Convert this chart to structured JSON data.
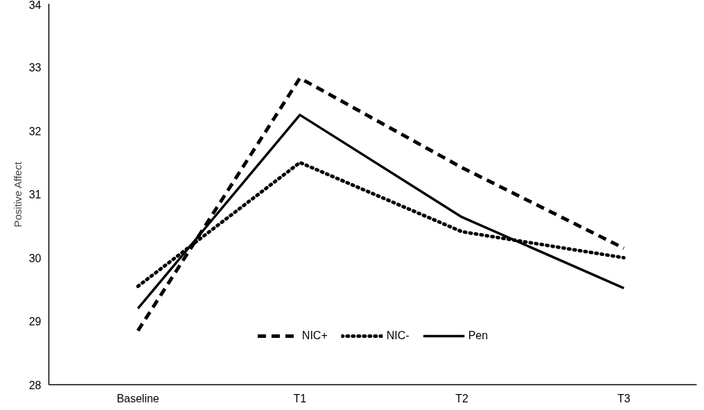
{
  "chart_data": {
    "type": "line",
    "ylabel": "Positive Affect",
    "categories": [
      "Baseline",
      "T1",
      "T2",
      "T3"
    ],
    "series": [
      {
        "name": "NIC+",
        "color": "#000000",
        "line_style": "dashed",
        "values": [
          28.85,
          32.83,
          31.42,
          30.15
        ]
      },
      {
        "name": "NIC-",
        "color": "#000000",
        "line_style": "dotted",
        "values": [
          29.55,
          31.5,
          30.41,
          30.0
        ]
      },
      {
        "name": "Pen",
        "color": "#000000",
        "line_style": "solid",
        "values": [
          29.2,
          32.25,
          30.64,
          29.52
        ]
      }
    ],
    "ylim": [
      28,
      34
    ],
    "yticks": [
      28,
      29,
      30,
      31,
      32,
      33,
      34
    ],
    "grid": false,
    "legend": "bottom"
  }
}
